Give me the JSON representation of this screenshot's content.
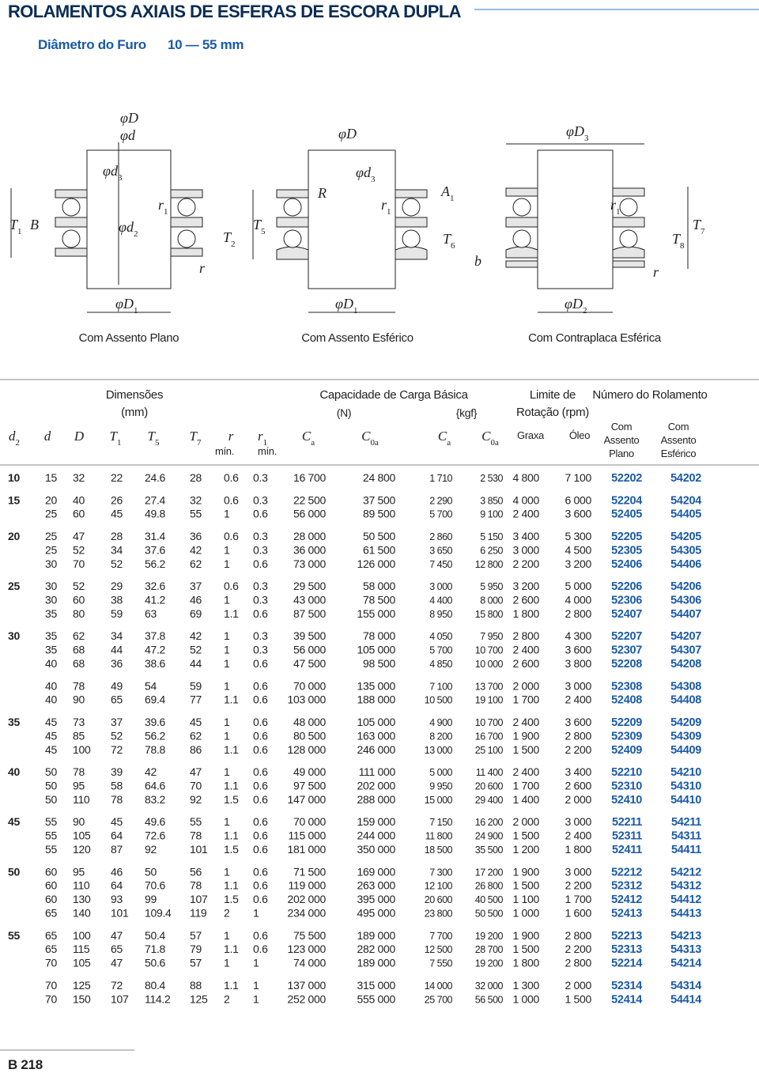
{
  "header": {
    "title": "ROLAMENTOS AXIAIS DE ESFERAS DE ESCORA DUPLA",
    "subtitle": "Diâmetro do Furo",
    "range": "10 — 55 mm"
  },
  "diagrams": [
    {
      "caption": "Com Assento Plano",
      "labels": [
        {
          "t": "φD"
        },
        {
          "t": "φd"
        },
        {
          "t": "φd",
          "s": "3"
        },
        {
          "t": "r",
          "s": "1"
        },
        {
          "t": "T",
          "s": "1"
        },
        {
          "t": "B"
        },
        {
          "t": "φd",
          "s": "2"
        },
        {
          "t": "T",
          "s": "2"
        },
        {
          "t": "r"
        },
        {
          "t": "φD",
          "s": "1"
        }
      ]
    },
    {
      "caption": "Com Assento Esférico",
      "labels": [
        {
          "t": "φD"
        },
        {
          "t": "φd",
          "s": "3"
        },
        {
          "t": "R"
        },
        {
          "t": "r",
          "s": "1"
        },
        {
          "t": "A",
          "s": "1"
        },
        {
          "t": "T",
          "s": "5"
        },
        {
          "t": "T",
          "s": "6"
        },
        {
          "t": "b"
        },
        {
          "t": "φD",
          "s": "1"
        }
      ]
    },
    {
      "caption": "Com Contraplaca Esférica",
      "labels": [
        {
          "t": "φD",
          "s": "3"
        },
        {
          "t": "r",
          "s": "1"
        },
        {
          "t": "T",
          "s": "7"
        },
        {
          "t": "T",
          "s": "8"
        },
        {
          "t": "r"
        },
        {
          "t": "φD",
          "s": "2"
        }
      ]
    }
  ],
  "table": {
    "groups_header": [
      {
        "lines": [
          "Dimensões",
          "(mm)"
        ]
      },
      {
        "lines": [
          "Capacidade de Carga Básica"
        ],
        "units": [
          "(N)",
          "{kgf}"
        ]
      },
      {
        "lines": [
          "Limite de",
          "Rotação (rpm)"
        ]
      },
      {
        "lines": [
          "Número do Rolamento"
        ]
      }
    ],
    "columns": [
      {
        "t": "d",
        "s": "2"
      },
      {
        "t": "d"
      },
      {
        "t": "D"
      },
      {
        "t": "T",
        "s": "1"
      },
      {
        "t": "T",
        "s": "5"
      },
      {
        "t": "T",
        "s": "7"
      },
      {
        "t": "r"
      },
      {
        "t": "r",
        "s": "1"
      },
      {
        "t": "C",
        "s": "a"
      },
      {
        "t": "C",
        "s": "0a"
      },
      {
        "t": "C",
        "s": "a"
      },
      {
        "t": "C",
        "s": "0a"
      },
      {
        "t": "Graxa"
      },
      {
        "t": "Óleo"
      },
      {
        "t": "Com Assento Plano",
        "lines": [
          "Com",
          "Assento",
          "Plano"
        ]
      },
      {
        "t": "Com Assento Esférico",
        "lines": [
          "Com",
          "Assento",
          "Esférico"
        ]
      }
    ],
    "min_notes": [
      "mín.",
      "mín."
    ],
    "groups": [
      {
        "d2": "10",
        "sets": [
          [
            [
              "15",
              "32",
              "22",
              "24.6",
              "28",
              "0.6",
              "0.3",
              "16 700",
              "24 800",
              "1 710",
              "2 530",
              "4 800",
              "7 100",
              "52202",
              "54202"
            ]
          ]
        ]
      },
      {
        "d2": "15",
        "sets": [
          [
            [
              "20",
              "40",
              "26",
              "27.4",
              "32",
              "0.6",
              "0.3",
              "22 500",
              "37 500",
              "2 290",
              "3 850",
              "4 000",
              "6 000",
              "52204",
              "54204"
            ],
            [
              "25",
              "60",
              "45",
              "49.8",
              "55",
              "1",
              "0.6",
              "56 000",
              "89 500",
              "5 700",
              "9 100",
              "2 400",
              "3 600",
              "52405",
              "54405"
            ]
          ]
        ]
      },
      {
        "d2": "20",
        "sets": [
          [
            [
              "25",
              "47",
              "28",
              "31.4",
              "36",
              "0.6",
              "0.3",
              "28 000",
              "50 500",
              "2 860",
              "5 150",
              "3 400",
              "5 300",
              "52205",
              "54205"
            ],
            [
              "25",
              "52",
              "34",
              "37.6",
              "42",
              "1",
              "0.3",
              "36 000",
              "61 500",
              "3 650",
              "6 250",
              "3 000",
              "4 500",
              "52305",
              "54305"
            ],
            [
              "30",
              "70",
              "52",
              "56.2",
              "62",
              "1",
              "0.6",
              "73 000",
              "126 000",
              "7 450",
              "12 800",
              "2 200",
              "3 200",
              "52406",
              "54406"
            ]
          ]
        ]
      },
      {
        "d2": "25",
        "sets": [
          [
            [
              "30",
              "52",
              "29",
              "32.6",
              "37",
              "0.6",
              "0.3",
              "29 500",
              "58 000",
              "3 000",
              "5 950",
              "3 200",
              "5 000",
              "52206",
              "54206"
            ],
            [
              "30",
              "60",
              "38",
              "41.2",
              "46",
              "1",
              "0.3",
              "43 000",
              "78 500",
              "4 400",
              "8 000",
              "2 600",
              "4 000",
              "52306",
              "54306"
            ],
            [
              "35",
              "80",
              "59",
              "63",
              "69",
              "1.1",
              "0.6",
              "87 500",
              "155 000",
              "8 950",
              "15 800",
              "1 800",
              "2 800",
              "52407",
              "54407"
            ]
          ]
        ]
      },
      {
        "d2": "30",
        "sets": [
          [
            [
              "35",
              "62",
              "34",
              "37.8",
              "42",
              "1",
              "0.3",
              "39 500",
              "78 000",
              "4 050",
              "7 950",
              "2 800",
              "4 300",
              "52207",
              "54207"
            ],
            [
              "35",
              "68",
              "44",
              "47.2",
              "52",
              "1",
              "0.3",
              "56 000",
              "105 000",
              "5 700",
              "10 700",
              "2 400",
              "3 600",
              "52307",
              "54307"
            ],
            [
              "40",
              "68",
              "36",
              "38.6",
              "44",
              "1",
              "0.6",
              "47 500",
              "98 500",
              "4 850",
              "10 000",
              "2 600",
              "3 800",
              "52208",
              "54208"
            ]
          ],
          [
            [
              "40",
              "78",
              "49",
              "54",
              "59",
              "1",
              "0.6",
              "70 000",
              "135 000",
              "7 100",
              "13 700",
              "2 000",
              "3 000",
              "52308",
              "54308"
            ],
            [
              "40",
              "90",
              "65",
              "69.4",
              "77",
              "1.1",
              "0.6",
              "103 000",
              "188 000",
              "10 500",
              "19 100",
              "1 700",
              "2 400",
              "52408",
              "54408"
            ]
          ]
        ]
      },
      {
        "d2": "35",
        "sets": [
          [
            [
              "45",
              "73",
              "37",
              "39.6",
              "45",
              "1",
              "0.6",
              "48 000",
              "105 000",
              "4 900",
              "10 700",
              "2 400",
              "3 600",
              "52209",
              "54209"
            ],
            [
              "45",
              "85",
              "52",
              "56.2",
              "62",
              "1",
              "0.6",
              "80 500",
              "163 000",
              "8 200",
              "16 700",
              "1 900",
              "2 800",
              "52309",
              "54309"
            ],
            [
              "45",
              "100",
              "72",
              "78.8",
              "86",
              "1.1",
              "0.6",
              "128 000",
              "246 000",
              "13 000",
              "25 100",
              "1 500",
              "2 200",
              "52409",
              "54409"
            ]
          ]
        ]
      },
      {
        "d2": "40",
        "sets": [
          [
            [
              "50",
              "78",
              "39",
              "42",
              "47",
              "1",
              "0.6",
              "49 000",
              "111 000",
              "5 000",
              "11 400",
              "2 400",
              "3 400",
              "52210",
              "54210"
            ],
            [
              "50",
              "95",
              "58",
              "64.6",
              "70",
              "1.1",
              "0.6",
              "97 500",
              "202 000",
              "9 950",
              "20 600",
              "1 700",
              "2 600",
              "52310",
              "54310"
            ],
            [
              "50",
              "110",
              "78",
              "83.2",
              "92",
              "1.5",
              "0.6",
              "147 000",
              "288 000",
              "15 000",
              "29 400",
              "1 400",
              "2 000",
              "52410",
              "54410"
            ]
          ]
        ]
      },
      {
        "d2": "45",
        "sets": [
          [
            [
              "55",
              "90",
              "45",
              "49.6",
              "55",
              "1",
              "0.6",
              "70 000",
              "159 000",
              "7 150",
              "16 200",
              "2 000",
              "3 000",
              "52211",
              "54211"
            ],
            [
              "55",
              "105",
              "64",
              "72.6",
              "78",
              "1.1",
              "0.6",
              "115 000",
              "244 000",
              "11 800",
              "24 900",
              "1 500",
              "2 400",
              "52311",
              "54311"
            ],
            [
              "55",
              "120",
              "87",
              "92",
              "101",
              "1.5",
              "0.6",
              "181 000",
              "350 000",
              "18 500",
              "35 500",
              "1 200",
              "1 800",
              "52411",
              "54411"
            ]
          ]
        ]
      },
      {
        "d2": "50",
        "sets": [
          [
            [
              "60",
              "95",
              "46",
              "50",
              "56",
              "1",
              "0.6",
              "71 500",
              "169 000",
              "7 300",
              "17 200",
              "1 900",
              "3 000",
              "52212",
              "54212"
            ],
            [
              "60",
              "110",
              "64",
              "70.6",
              "78",
              "1.1",
              "0.6",
              "119 000",
              "263 000",
              "12 100",
              "26 800",
              "1 500",
              "2 200",
              "52312",
              "54312"
            ],
            [
              "60",
              "130",
              "93",
              "99",
              "107",
              "1.5",
              "0.6",
              "202 000",
              "395 000",
              "20 600",
              "40 500",
              "1 100",
              "1 700",
              "52412",
              "54412"
            ],
            [
              "65",
              "140",
              "101",
              "109.4",
              "119",
              "2",
              "1",
              "234 000",
              "495 000",
              "23 800",
              "50 500",
              "1 000",
              "1 600",
              "52413",
              "54413"
            ]
          ]
        ]
      },
      {
        "d2": "55",
        "sets": [
          [
            [
              "65",
              "100",
              "47",
              "50.4",
              "57",
              "1",
              "0.6",
              "75 500",
              "189 000",
              "7 700",
              "19 200",
              "1 900",
              "2 800",
              "52213",
              "54213"
            ],
            [
              "65",
              "115",
              "65",
              "71.8",
              "79",
              "1.1",
              "0.6",
              "123 000",
              "282 000",
              "12 500",
              "28 700",
              "1 500",
              "2 200",
              "52313",
              "54313"
            ],
            [
              "70",
              "105",
              "47",
              "50.6",
              "57",
              "1",
              "1",
              "74 000",
              "189 000",
              "7 550",
              "19 200",
              "1 800",
              "2 800",
              "52214",
              "54214"
            ]
          ],
          [
            [
              "70",
              "125",
              "72",
              "80.4",
              "88",
              "1.1",
              "1",
              "137 000",
              "315 000",
              "14 000",
              "32 000",
              "1 300",
              "2 000",
              "52314",
              "54314"
            ],
            [
              "70",
              "150",
              "107",
              "114.2",
              "125",
              "2",
              "1",
              "252 000",
              "555 000",
              "25 700",
              "56 500",
              "1 000",
              "1 500",
              "52414",
              "54414"
            ]
          ]
        ]
      }
    ]
  },
  "footer": {
    "page": "B 218"
  }
}
